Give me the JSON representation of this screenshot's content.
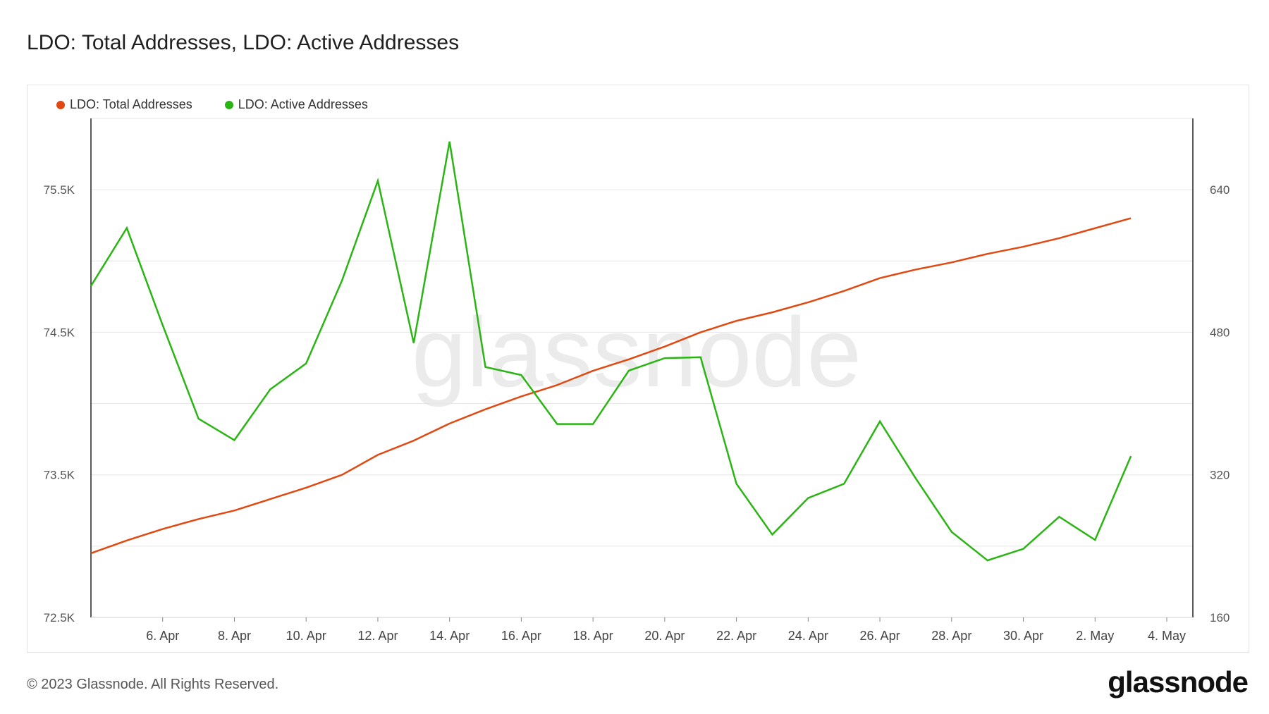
{
  "title": "LDO: Total Addresses, LDO: Active Addresses",
  "footer": {
    "copyright": "© 2023 Glassnode. All Rights Reserved.",
    "logo": "glassnode",
    "watermark": "glassnode"
  },
  "chart_data": {
    "type": "line",
    "title": "LDO: Total Addresses, LDO: Active Addresses",
    "x_tick_labels": [
      "6. Apr",
      "8. Apr",
      "10. Apr",
      "12. Apr",
      "14. Apr",
      "16. Apr",
      "18. Apr",
      "20. Apr",
      "22. Apr",
      "24. Apr",
      "26. Apr",
      "28. Apr",
      "30. Apr",
      "2. May",
      "4. May"
    ],
    "x_tick_dates": [
      "2023-04-06",
      "2023-04-08",
      "2023-04-10",
      "2023-04-12",
      "2023-04-14",
      "2023-04-16",
      "2023-04-18",
      "2023-04-20",
      "2023-04-22",
      "2023-04-24",
      "2023-04-26",
      "2023-04-28",
      "2023-04-30",
      "2023-05-02",
      "2023-05-04"
    ],
    "x": [
      "2023-04-04",
      "2023-04-05",
      "2023-04-06",
      "2023-04-07",
      "2023-04-08",
      "2023-04-09",
      "2023-04-10",
      "2023-04-11",
      "2023-04-12",
      "2023-04-13",
      "2023-04-14",
      "2023-04-15",
      "2023-04-16",
      "2023-04-17",
      "2023-04-18",
      "2023-04-19",
      "2023-04-20",
      "2023-04-21",
      "2023-04-22",
      "2023-04-23",
      "2023-04-24",
      "2023-04-25",
      "2023-04-26",
      "2023-04-27",
      "2023-04-28",
      "2023-04-29",
      "2023-04-30",
      "2023-05-01",
      "2023-05-02",
      "2023-05-03"
    ],
    "xlim": [
      "2023-04-04",
      "2023-05-04"
    ],
    "left_axis": {
      "ticks": [
        "72.5K",
        "73.5K",
        "74.5K",
        "75.5K"
      ],
      "min": 72500,
      "max": 76000
    },
    "right_axis": {
      "ticks": [
        "160",
        "320",
        "480",
        "640"
      ],
      "min": 160,
      "max": 720
    },
    "series": [
      {
        "name": "LDO: Total Addresses",
        "color": "#e04a12",
        "axis": "left",
        "values": [
          72950,
          73040,
          73120,
          73190,
          73250,
          73330,
          73410,
          73500,
          73640,
          73740,
          73860,
          73960,
          74050,
          74130,
          74230,
          74310,
          74400,
          74500,
          74580,
          74640,
          74710,
          74790,
          74880,
          74940,
          74990,
          75050,
          75100,
          75160,
          75230,
          75300
        ]
      },
      {
        "name": "LDO: Active Addresses",
        "color": "#2ab514",
        "axis": "left_ignore",
        "values": [
          532,
          597,
          488,
          383,
          359,
          416,
          445,
          538,
          650,
          468,
          694,
          441,
          432,
          377,
          377,
          437,
          451,
          452,
          310,
          253,
          294,
          310,
          380,
          316,
          256,
          224,
          237,
          273,
          247,
          341
        ]
      }
    ],
    "grid": true,
    "legend": "top-left"
  }
}
